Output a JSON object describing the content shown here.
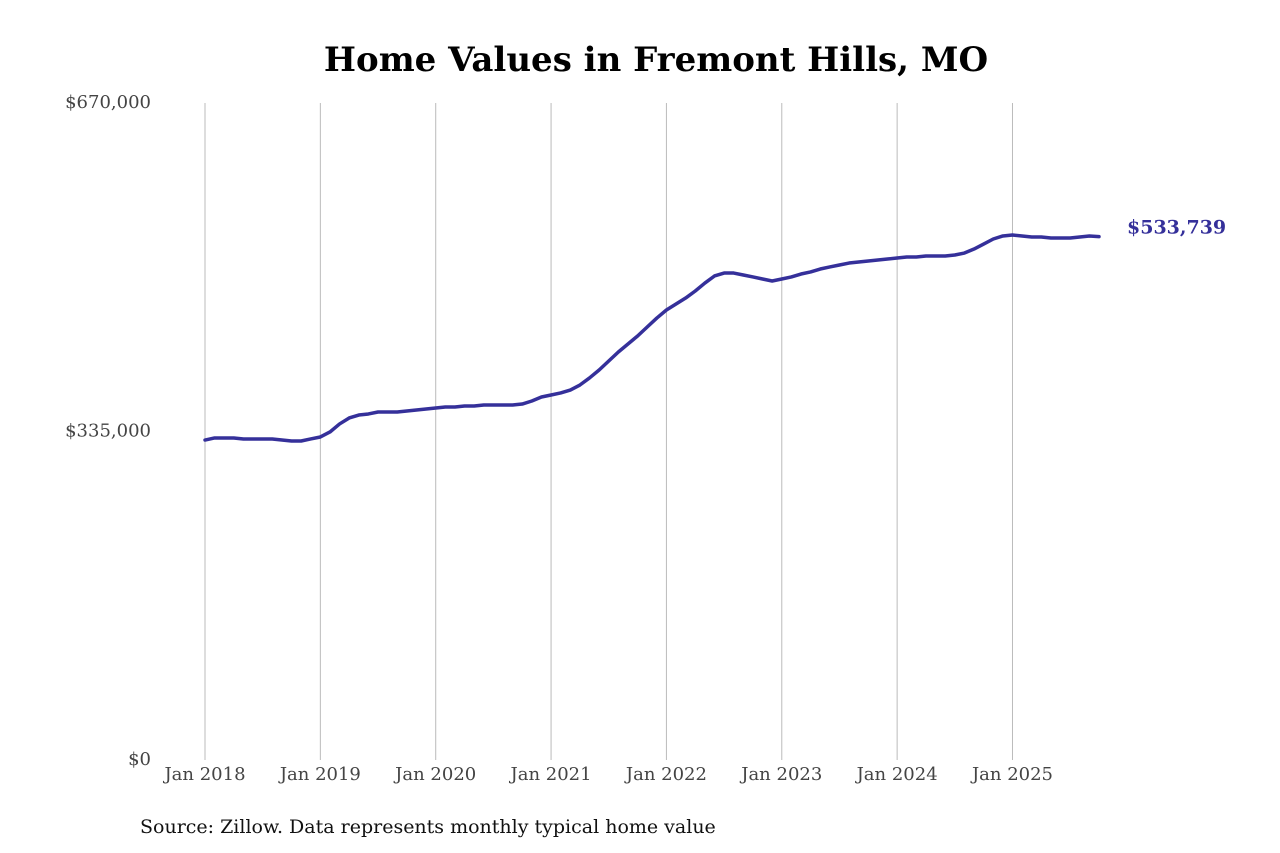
{
  "chart_data": {
    "type": "line",
    "title": "Home Values in Fremont Hills, MO",
    "source": "Source: Zillow. Data represents monthly typical home value",
    "x": [
      "2018-01",
      "2018-02",
      "2018-03",
      "2018-04",
      "2018-05",
      "2018-06",
      "2018-07",
      "2018-08",
      "2018-09",
      "2018-10",
      "2018-11",
      "2018-12",
      "2019-01",
      "2019-02",
      "2019-03",
      "2019-04",
      "2019-05",
      "2019-06",
      "2019-07",
      "2019-08",
      "2019-09",
      "2019-10",
      "2019-11",
      "2019-12",
      "2020-01",
      "2020-02",
      "2020-03",
      "2020-04",
      "2020-05",
      "2020-06",
      "2020-07",
      "2020-08",
      "2020-09",
      "2020-10",
      "2020-11",
      "2020-12",
      "2021-01",
      "2021-02",
      "2021-03",
      "2021-04",
      "2021-05",
      "2021-06",
      "2021-07",
      "2021-08",
      "2021-09",
      "2021-10",
      "2021-11",
      "2021-12",
      "2022-01",
      "2022-02",
      "2022-03",
      "2022-04",
      "2022-05",
      "2022-06",
      "2022-07",
      "2022-08",
      "2022-09",
      "2022-10",
      "2022-11",
      "2022-12",
      "2023-01",
      "2023-02",
      "2023-03",
      "2023-04",
      "2023-05",
      "2023-06",
      "2023-07",
      "2023-08",
      "2023-09",
      "2023-10",
      "2023-11",
      "2023-12",
      "2024-01",
      "2024-02",
      "2024-03",
      "2024-04",
      "2024-05",
      "2024-06",
      "2024-07",
      "2024-08",
      "2024-09",
      "2024-10",
      "2024-11",
      "2024-12",
      "2025-01",
      "2025-02",
      "2025-03",
      "2025-04",
      "2025-05",
      "2025-06",
      "2025-07",
      "2025-08",
      "2025-09",
      "2025-10"
    ],
    "values": [
      326300,
      328400,
      328400,
      328400,
      327400,
      327400,
      327400,
      327400,
      326300,
      325300,
      325300,
      327400,
      329400,
      334500,
      342700,
      348800,
      351800,
      352900,
      354900,
      354900,
      354900,
      355900,
      356900,
      358000,
      359000,
      360000,
      360000,
      361000,
      361000,
      362000,
      362000,
      362000,
      362000,
      363000,
      366100,
      370200,
      372200,
      374300,
      377300,
      382400,
      389600,
      397700,
      406900,
      416100,
      424200,
      432400,
      441600,
      450700,
      458900,
      465000,
      471100,
      478300,
      486400,
      493600,
      496600,
      496600,
      494600,
      492600,
      490500,
      488500,
      490500,
      492600,
      495600,
      497700,
      500700,
      502800,
      504800,
      506800,
      507900,
      508900,
      509900,
      510900,
      511900,
      513000,
      513000,
      514000,
      514000,
      514000,
      515000,
      517000,
      521100,
      526200,
      531300,
      534400,
      535400,
      534400,
      533400,
      533400,
      532300,
      532300,
      532300,
      533400,
      534400,
      533739
    ],
    "value_labels": [
      null,
      null,
      null,
      null,
      null,
      null,
      null,
      null,
      null,
      null,
      null,
      null,
      null,
      null,
      null,
      null,
      null,
      null,
      null,
      null,
      null,
      null,
      null,
      null,
      null,
      null,
      null,
      null,
      null,
      null,
      null,
      null,
      null,
      null,
      null,
      null,
      null,
      null,
      null,
      null,
      null,
      null,
      null,
      null,
      null,
      null,
      null,
      null,
      null,
      null,
      null,
      null,
      null,
      null,
      null,
      null,
      null,
      null,
      null,
      null,
      null,
      null,
      null,
      null,
      null,
      null,
      null,
      null,
      null,
      null,
      null,
      null,
      null,
      null,
      null,
      null,
      null,
      null,
      null,
      null,
      null,
      null,
      null,
      null,
      null,
      null,
      null,
      null,
      null,
      null,
      null,
      null,
      null,
      "$533,739"
    ],
    "color": "#35309a",
    "xlim": [
      "2018-01",
      "2025-10"
    ],
    "xticks": [
      {
        "value": "2018-01",
        "label": "Jan 2018"
      },
      {
        "value": "2019-01",
        "label": "Jan 2019"
      },
      {
        "value": "2020-01",
        "label": "Jan 2020"
      },
      {
        "value": "2021-01",
        "label": "Jan 2021"
      },
      {
        "value": "2022-01",
        "label": "Jan 2022"
      },
      {
        "value": "2023-01",
        "label": "Jan 2023"
      },
      {
        "value": "2024-01",
        "label": "Jan 2024"
      },
      {
        "value": "2025-01",
        "label": "Jan 2025"
      }
    ],
    "ylim": [
      0,
      670000
    ],
    "yticks": [
      {
        "value": 0,
        "label": "$0"
      },
      {
        "value": 335000,
        "label": "$335,000"
      },
      {
        "value": 670000,
        "label": "$670,000"
      }
    ],
    "grid": "x"
  }
}
